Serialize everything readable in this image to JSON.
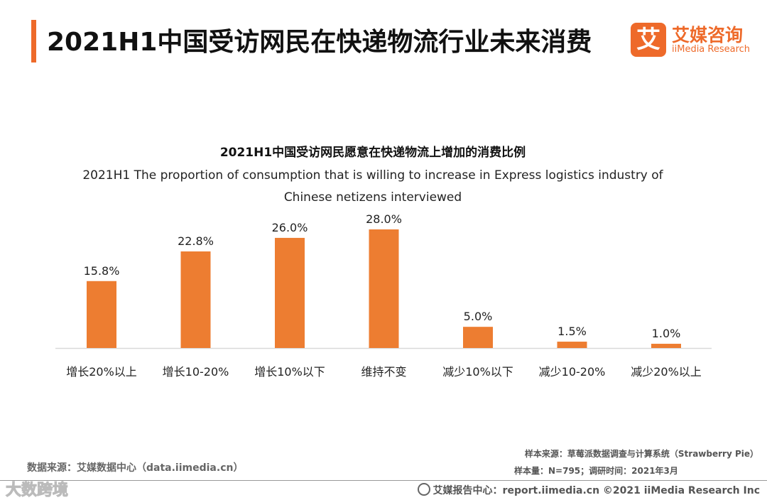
{
  "header": {
    "title": "2021H1中国受访网民在快递物流行业未来消费",
    "logo_mark": "艾",
    "logo_name": "艾媒咨询",
    "logo_sub": "iiMedia Research"
  },
  "colors": {
    "accent": "#ee6a2a",
    "bar": "#ed7d31",
    "axis": "#d9d9d9"
  },
  "chart_data": {
    "type": "bar",
    "title": "2021H1中国受访网民愿意在快递物流上增加的消费比例",
    "subtitle": "2021H1 The  proportion of consumption  that is willing to increase  in Express logistics industry of Chinese netizens interviewed",
    "categories": [
      "增长20%以上",
      "增长10-20%",
      "增长10%以下",
      "维持不变",
      "减少10%以下",
      "减少10-20%",
      "减少20%以上"
    ],
    "values": [
      15.8,
      22.8,
      26.0,
      28.0,
      5.0,
      1.5,
      1.0
    ],
    "value_labels": [
      "15.8%",
      "22.8%",
      "26.0%",
      "28.0%",
      "5.0%",
      "1.5%",
      "1.0%"
    ],
    "unit": "%",
    "ylim": [
      0,
      28
    ],
    "grid": false,
    "legend": "none"
  },
  "footer": {
    "data_source": "数据来源：艾媒数据中心（data.iimedia.cn）",
    "sample_source": "样本来源：草莓派数据调查与计算系统（Strawberry Pie）",
    "sample_size": "样本量：N=795；调研时间：2021年3月",
    "report_center": "艾媒报告中心：report.iimedia.cn  ©2021  iiMedia Research  Inc",
    "watermark": "大数跨境"
  }
}
